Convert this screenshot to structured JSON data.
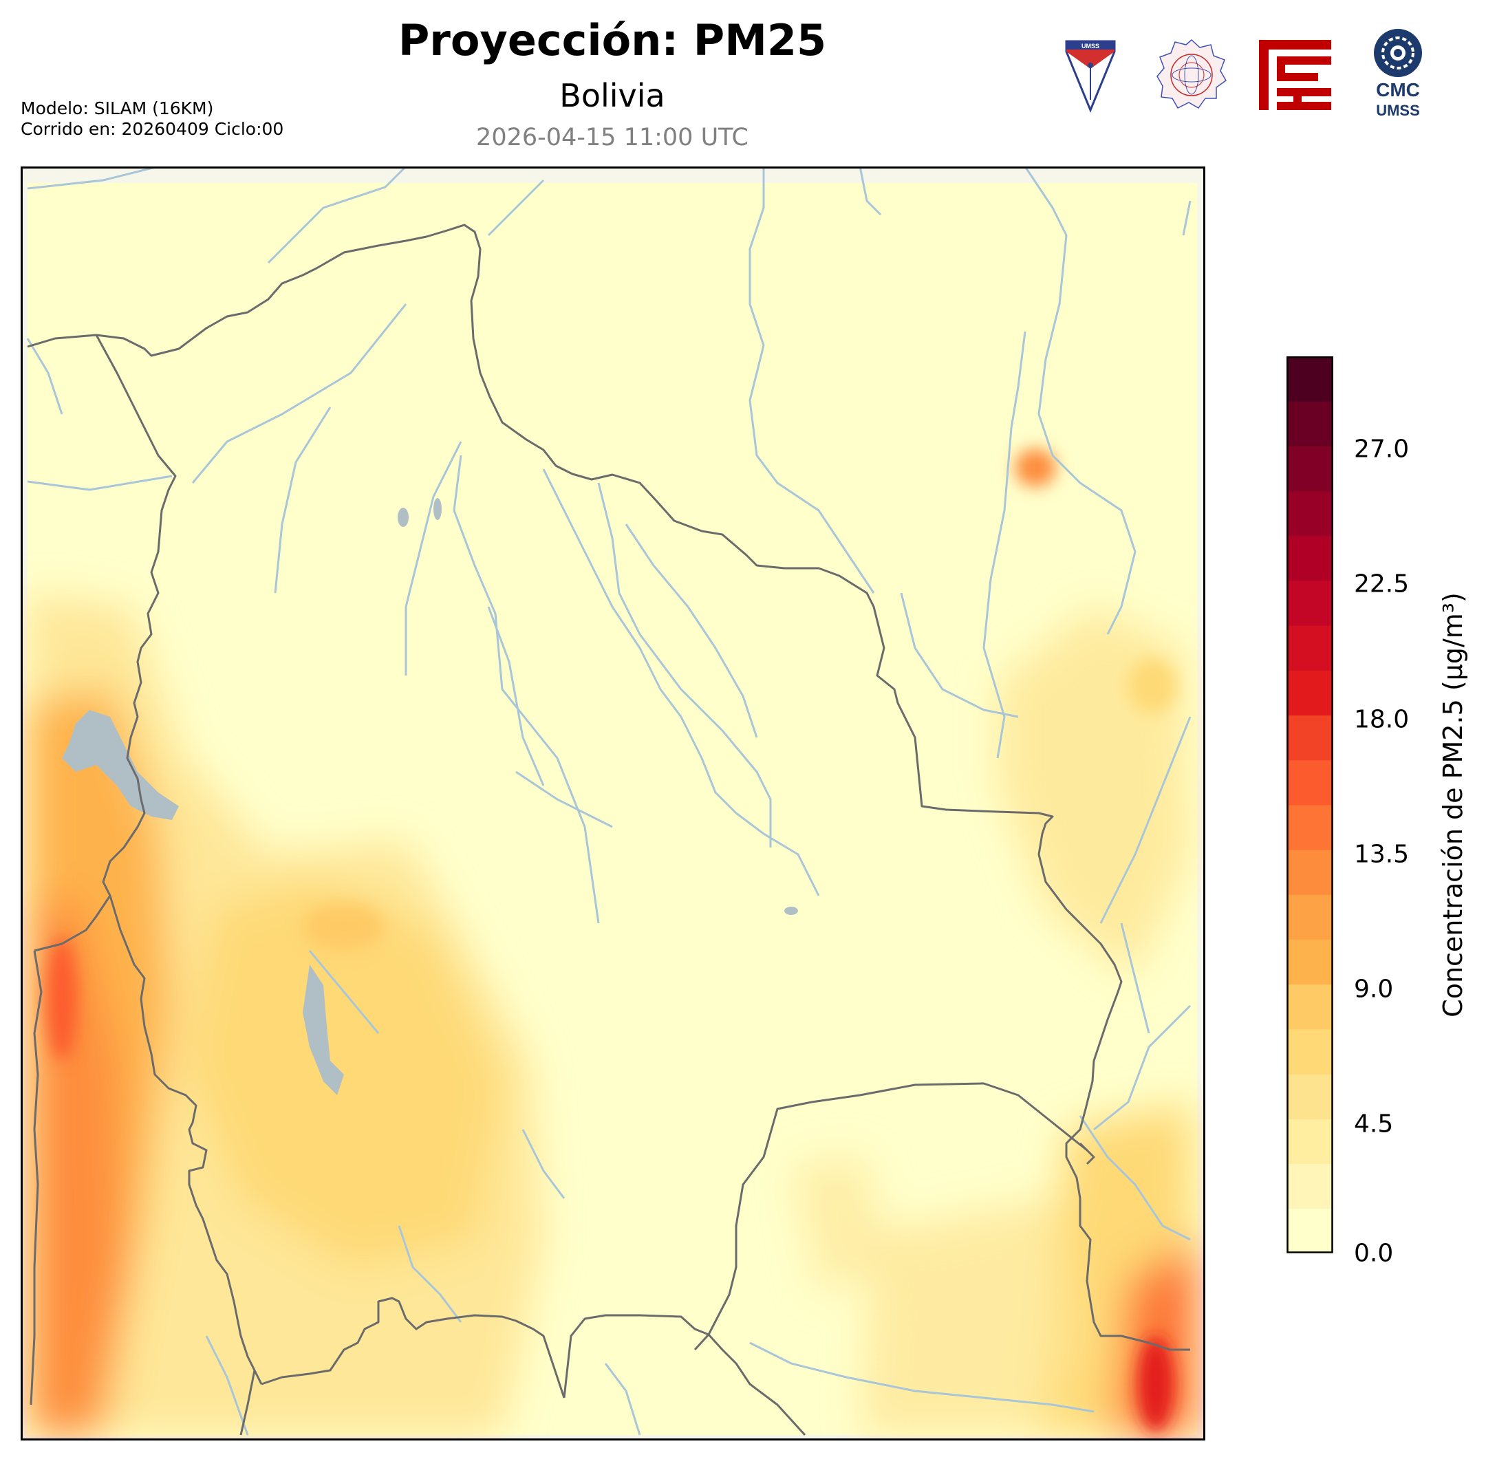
{
  "header": {
    "title": "Proyección: PM25",
    "subtitle": "Bolivia",
    "datetime": "2026-04-15 11:00 UTC"
  },
  "model_info": {
    "line1": "Modelo: SILAM (16KM)",
    "line2": "Corrido en: 20260409 Ciclo:00"
  },
  "logos": [
    {
      "name": "umss-shield-logo",
      "text": "UMSS"
    },
    {
      "name": "departamento-fisica-seal-logo",
      "text": "DEPARTAMENTO DE FISICA"
    },
    {
      "name": "red-emblem-logo",
      "text": ""
    },
    {
      "name": "cmc-umss-logo",
      "text": "CMC UMSS"
    }
  ],
  "colorbar": {
    "label": "Concentración de PM2.5 (µg/m³)",
    "ticks": [
      "27.0",
      "22.5",
      "18.0",
      "13.5",
      "9.0",
      "4.5",
      "0.0"
    ],
    "min": 0,
    "max": 30,
    "colors": [
      "#ffffcc",
      "#fff5b8",
      "#ffeda0",
      "#fee38e",
      "#fed976",
      "#feca66",
      "#feb24c",
      "#fea246",
      "#fd8d3c",
      "#fd7434",
      "#fc5b2e",
      "#f34327",
      "#e31a1c",
      "#d50f22",
      "#c40626",
      "#b10026",
      "#990027",
      "#800026",
      "#6a0024",
      "#4d0020"
    ]
  },
  "map": {
    "background": "#ffffcc",
    "border_color": "#555555",
    "river_color": "#a9c6d8",
    "lake_color": "#b0bec5"
  }
}
